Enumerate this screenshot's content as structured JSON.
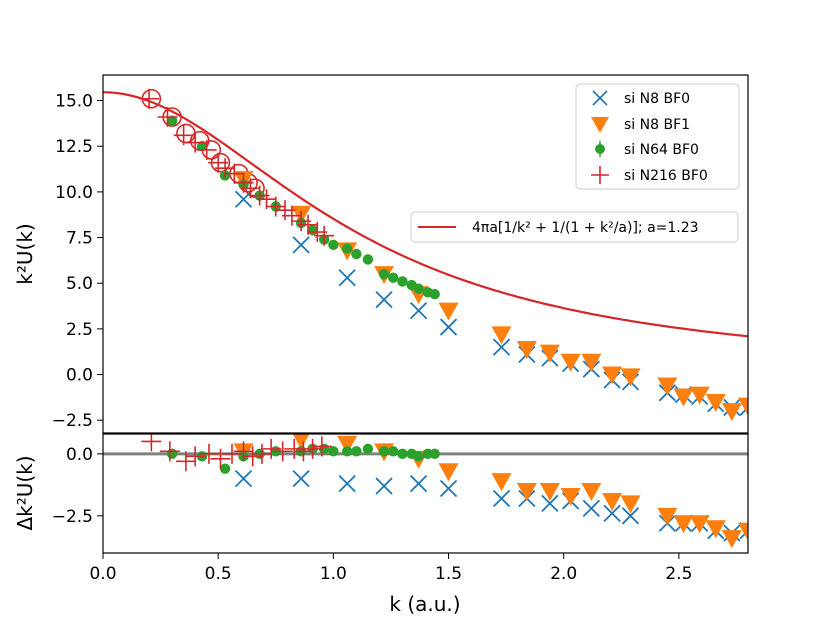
{
  "chart_data": [
    {
      "panel": "top",
      "type": "scatter",
      "ylabel": "k²U(k)",
      "xlim": [
        0.0,
        2.8
      ],
      "ylim": [
        -3.2,
        16.4
      ],
      "yticks": [
        15.0,
        12.5,
        10.0,
        7.5,
        5.0,
        2.5,
        0.0,
        -2.5
      ],
      "ytick_labels": [
        "15.0",
        "12.5",
        "10.0",
        "7.5",
        "5.0",
        "2.5",
        "0.0",
        "−2.5"
      ],
      "series": [
        {
          "name": "si N8 BF0",
          "marker": "x",
          "color": "#1f77b4",
          "x": [
            0.61,
            0.86,
            1.06,
            1.22,
            1.37,
            1.5,
            1.73,
            1.84,
            1.94,
            2.03,
            2.12,
            2.21,
            2.29,
            2.45,
            2.52,
            2.59,
            2.66,
            2.73,
            2.8
          ],
          "y": [
            9.6,
            7.1,
            5.3,
            4.1,
            3.5,
            2.6,
            1.5,
            1.1,
            0.9,
            0.6,
            0.3,
            -0.3,
            -0.4,
            -1.0,
            -1.1,
            -1.2,
            -1.6,
            -1.8,
            -1.8
          ]
        },
        {
          "name": "si N8 BF1",
          "marker": "triangle-down",
          "color": "#ff7f0e",
          "x": [
            0.61,
            0.86,
            1.06,
            1.22,
            1.37,
            1.5,
            1.73,
            1.84,
            1.94,
            2.03,
            2.12,
            2.21,
            2.29,
            2.45,
            2.52,
            2.59,
            2.66,
            2.73,
            2.8
          ],
          "y": [
            10.7,
            8.8,
            6.8,
            5.5,
            4.4,
            3.5,
            2.2,
            1.4,
            1.2,
            0.7,
            0.7,
            0.0,
            -0.1,
            -0.6,
            -1.2,
            -1.1,
            -1.5,
            -2.0,
            -1.7
          ]
        },
        {
          "name": "si N64 BF0",
          "marker": "circle",
          "color": "#2ca02c",
          "x": [
            0.3,
            0.43,
            0.53,
            0.61,
            0.68,
            0.75,
            0.86,
            0.91,
            0.96,
            1.0,
            1.06,
            1.1,
            1.15,
            1.22,
            1.26,
            1.3,
            1.34,
            1.37,
            1.41,
            1.44
          ],
          "y": [
            13.9,
            12.5,
            10.9,
            10.4,
            9.8,
            9.2,
            8.3,
            7.9,
            7.4,
            7.1,
            6.9,
            6.6,
            6.3,
            5.5,
            5.3,
            5.1,
            4.9,
            4.7,
            4.5,
            4.4
          ]
        },
        {
          "name": "si N216 BF0",
          "marker": "plus",
          "color": "#d62728",
          "x": [
            0.2,
            0.28,
            0.35,
            0.4,
            0.45,
            0.5,
            0.53,
            0.57,
            0.61,
            0.64,
            0.68,
            0.71,
            0.75,
            0.79,
            0.82,
            0.86,
            0.89,
            0.93,
            0.96
          ],
          "y": [
            15.1,
            14.1,
            13.1,
            12.7,
            12.3,
            11.6,
            11.3,
            11.0,
            10.5,
            10.2,
            9.8,
            9.6,
            9.2,
            9.0,
            8.7,
            8.4,
            8.2,
            7.8,
            7.6
          ]
        },
        {
          "name": "open circles (N216 points, no legend entry)",
          "marker": "open-circle",
          "color": "#d62728",
          "x": [
            0.21,
            0.3,
            0.36,
            0.42,
            0.47,
            0.51,
            0.59,
            0.63,
            0.66
          ],
          "y": [
            15.1,
            14.1,
            13.2,
            12.8,
            12.3,
            11.6,
            11.0,
            10.5,
            10.2
          ]
        },
        {
          "name": "4πa[1/k² + 1/(1 + k²/a)]; a=1.23",
          "marker": "line",
          "color": "#d62728",
          "a": 1.23
        }
      ],
      "legend": {
        "placement": "top-right",
        "entries": [
          "si N8 BF0",
          "si N8 BF1",
          "si N64 BF0",
          "si N216 BF0"
        ]
      },
      "line_legend": {
        "placement": "right",
        "label_main": "4πa[1/k² + 1/(1 + k²/a)]; a=1.23"
      }
    },
    {
      "panel": "bottom",
      "type": "scatter",
      "ylabel": "Δk²U(k)",
      "xlabel": "k (a.u.)",
      "xlim": [
        0.0,
        2.8
      ],
      "ylim": [
        -4.0,
        0.8
      ],
      "xticks": [
        0.0,
        0.5,
        1.0,
        1.5,
        2.0,
        2.5
      ],
      "xtick_labels": [
        "0.0",
        "0.5",
        "1.0",
        "1.5",
        "2.0",
        "2.5"
      ],
      "yticks": [
        0.0,
        -2.5
      ],
      "ytick_labels": [
        "0.0",
        "−2.5"
      ],
      "reference_line": 0.0,
      "series": [
        {
          "name": "si N8 BF0",
          "marker": "x",
          "color": "#1f77b4",
          "x": [
            0.61,
            0.86,
            1.06,
            1.22,
            1.37,
            1.5,
            1.73,
            1.84,
            1.94,
            2.03,
            2.12,
            2.21,
            2.29,
            2.45,
            2.52,
            2.59,
            2.66,
            2.73,
            2.8
          ],
          "y": [
            -1.0,
            -1.0,
            -1.2,
            -1.3,
            -1.2,
            -1.4,
            -1.8,
            -1.8,
            -2.0,
            -1.9,
            -2.2,
            -2.4,
            -2.5,
            -2.8,
            -2.8,
            -2.8,
            -3.1,
            -3.2,
            -3.1
          ]
        },
        {
          "name": "si N8 BF1",
          "marker": "triangle-down",
          "color": "#ff7f0e",
          "x": [
            0.61,
            0.86,
            1.06,
            1.22,
            1.37,
            1.5,
            1.73,
            1.84,
            1.94,
            2.03,
            2.12,
            2.21,
            2.29,
            2.45,
            2.52,
            2.59,
            2.66,
            2.73,
            2.8
          ],
          "y": [
            0.1,
            0.6,
            0.4,
            0.1,
            -0.2,
            -0.7,
            -1.1,
            -1.5,
            -1.5,
            -1.7,
            -1.5,
            -1.9,
            -2.0,
            -2.5,
            -2.8,
            -2.8,
            -3.0,
            -3.4,
            -3.1
          ]
        },
        {
          "name": "si N64 BF0",
          "marker": "circle",
          "color": "#2ca02c",
          "x": [
            0.3,
            0.43,
            0.53,
            0.61,
            0.68,
            0.75,
            0.86,
            0.91,
            0.96,
            1.0,
            1.06,
            1.1,
            1.15,
            1.22,
            1.26,
            1.3,
            1.34,
            1.37,
            1.41,
            1.44
          ],
          "y": [
            0.0,
            -0.1,
            -0.6,
            -0.1,
            0.0,
            0.1,
            0.1,
            0.2,
            0.2,
            0.1,
            0.1,
            0.1,
            0.2,
            0.1,
            0.1,
            0.0,
            0.0,
            -0.1,
            0.0,
            0.0
          ]
        },
        {
          "name": "si N216 BF0",
          "marker": "plus",
          "color": "#d62728",
          "x": [
            0.21,
            0.29,
            0.36,
            0.4,
            0.46,
            0.51,
            0.56,
            0.61,
            0.65,
            0.69,
            0.73,
            0.78,
            0.83,
            0.87,
            0.91,
            0.95
          ],
          "y": [
            0.5,
            0.1,
            -0.3,
            -0.1,
            0.0,
            -0.2,
            0.0,
            0.1,
            -0.1,
            0.0,
            0.2,
            0.1,
            0.2,
            0.1,
            0.2,
            0.3
          ]
        }
      ]
    }
  ]
}
